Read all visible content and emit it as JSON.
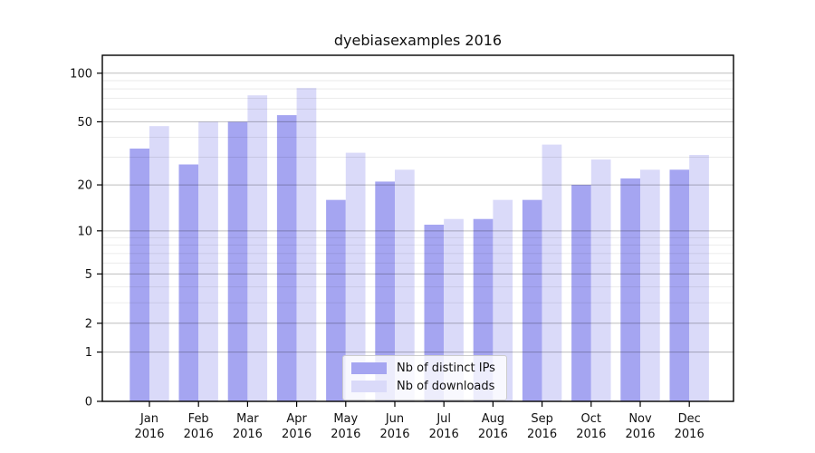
{
  "chart_data": {
    "type": "bar",
    "title": "dyebiasexamples 2016",
    "categories": [
      "Jan",
      "Feb",
      "Mar",
      "Apr",
      "May",
      "Jun",
      "Jul",
      "Aug",
      "Sep",
      "Oct",
      "Nov",
      "Dec"
    ],
    "year": "2016",
    "series": [
      {
        "name": "Nb of distinct IPs",
        "color": "#a5a5f1",
        "values": [
          34,
          27,
          50,
          55,
          16,
          21,
          11,
          12,
          16,
          20,
          22,
          25
        ]
      },
      {
        "name": "Nb of downloads",
        "color": "#dadaf9",
        "values": [
          47,
          50,
          73,
          81,
          32,
          25,
          12,
          16,
          36,
          29,
          25,
          31
        ]
      }
    ],
    "yscale": "log10(1+y)",
    "ylim": [
      0,
      129
    ],
    "y_ticks": [
      0,
      1,
      2,
      5,
      10,
      20,
      50,
      100
    ],
    "y_minor_ticks": [
      3,
      4,
      6,
      7,
      8,
      9,
      30,
      40,
      60,
      70,
      80,
      90
    ],
    "grid": true,
    "legend_position": "lower center"
  }
}
